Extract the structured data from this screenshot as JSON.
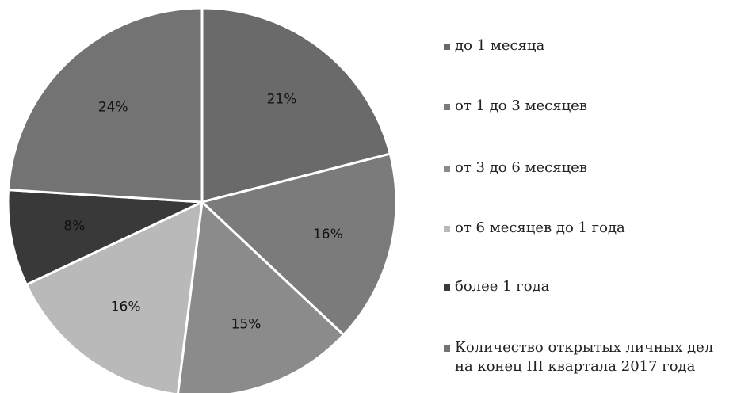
{
  "chart_data": {
    "type": "pie",
    "slices": [
      {
        "label": "до 1 месяца",
        "value": 21,
        "display": "21%",
        "color": "#6a6a6a"
      },
      {
        "label": "от 1 до 3 месяцев",
        "value": 16,
        "display": "16%",
        "color": "#7b7b7b"
      },
      {
        "label": "от 3 до 6 месяцев",
        "value": 15,
        "display": "15%",
        "color": "#8b8b8b"
      },
      {
        "label": "от 6 месяцев до 1 года",
        "value": 16,
        "display": "16%",
        "color": "#b9b9b9"
      },
      {
        "label": "более 1 года",
        "value": 8,
        "display": "8%",
        "color": "#393939"
      },
      {
        "label": "Количество открытых личных дел\nна конец III квартала 2017 года",
        "value": 24,
        "display": "24%",
        "color": "#737373"
      }
    ],
    "legend": {
      "placement": "right"
    }
  }
}
